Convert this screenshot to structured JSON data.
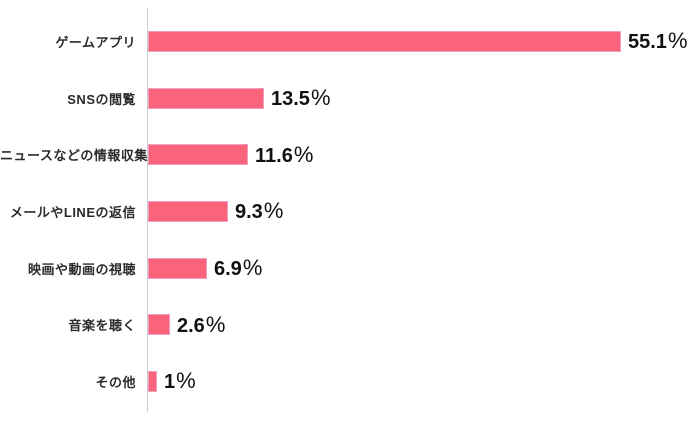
{
  "chart_data": {
    "type": "bar",
    "orientation": "horizontal",
    "title": "",
    "xlabel": "",
    "ylabel": "",
    "categories": [
      "ゲームアプリ",
      "SNSの閲覧",
      "ニュースなどの情報収集",
      "メールやLINEの返信",
      "映画や動画の視聴",
      "音楽を聴く",
      "その他"
    ],
    "values": [
      55.1,
      13.5,
      11.6,
      9.3,
      6.9,
      2.6,
      1
    ],
    "value_labels": [
      "55.1",
      "13.5",
      "11.6",
      "9.3",
      "6.9",
      "2.6",
      "1"
    ],
    "unit": "%",
    "xlim": [
      0,
      60
    ],
    "grid": false,
    "legend": false,
    "bar_color": "#fa637c",
    "bar_border_color": "#ef9ec0",
    "axis_line_color": "#cccccc",
    "label_color": "#2b2b2b",
    "value_color": "#111111",
    "background_color": "#ffffff"
  }
}
